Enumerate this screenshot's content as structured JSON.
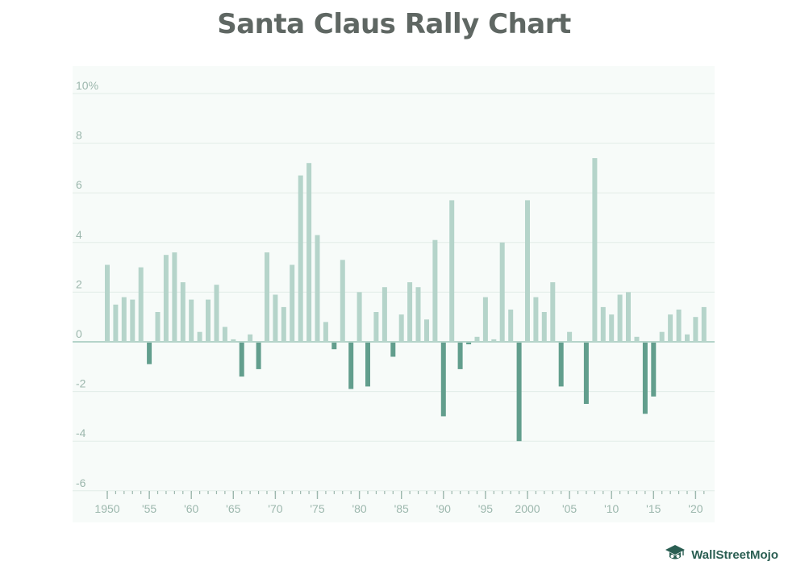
{
  "title": "Santa Claus Rally Chart",
  "brand": {
    "name": "WallStreetMojo",
    "color": "#2a5e52"
  },
  "colors": {
    "plot_background": "#f7fbf9",
    "positive": "#b5d4ca",
    "negative": "#629e8d",
    "gridline": "#e2ece8",
    "zero_line": "#b5d4ca",
    "tick_text": "#9cb7ad"
  },
  "chart_data": {
    "type": "bar",
    "title": "Santa Claus Rally Chart",
    "xlabel": "",
    "ylabel": "",
    "ylim": [
      -6,
      10
    ],
    "y_ticks": [
      -6,
      -4,
      -2,
      0,
      2,
      4,
      6,
      8,
      10
    ],
    "y_tick_labels": [
      "-6",
      "-4",
      "-2",
      "0",
      "2",
      "4",
      "6",
      "8",
      "10%"
    ],
    "x_tick_years": [
      1950,
      1955,
      1960,
      1965,
      1970,
      1975,
      1980,
      1985,
      1990,
      1995,
      2000,
      2005,
      2010,
      2015,
      2020
    ],
    "x_tick_labels": [
      "1950",
      "'55",
      "'60",
      "'65",
      "'70",
      "'75",
      "'80",
      "'85",
      "'90",
      "'95",
      "2000",
      "'05",
      "'10",
      "'15",
      "'20"
    ],
    "grid": true,
    "legend": "none",
    "years": [
      1950,
      1951,
      1952,
      1953,
      1954,
      1955,
      1956,
      1957,
      1958,
      1959,
      1960,
      1961,
      1962,
      1963,
      1964,
      1965,
      1966,
      1967,
      1968,
      1969,
      1970,
      1971,
      1972,
      1973,
      1974,
      1975,
      1976,
      1977,
      1978,
      1979,
      1980,
      1981,
      1982,
      1983,
      1984,
      1985,
      1986,
      1987,
      1988,
      1989,
      1990,
      1991,
      1992,
      1993,
      1994,
      1995,
      1996,
      1997,
      1998,
      1999,
      2000,
      2001,
      2002,
      2003,
      2004,
      2005,
      2006,
      2007,
      2008,
      2009,
      2010,
      2011,
      2012,
      2013,
      2014,
      2015,
      2016,
      2017,
      2018,
      2019,
      2020,
      2021
    ],
    "values": [
      3.1,
      1.5,
      1.8,
      1.7,
      3.0,
      -0.9,
      1.2,
      3.5,
      3.6,
      2.4,
      1.7,
      0.4,
      1.7,
      2.3,
      0.6,
      0.1,
      -1.4,
      0.3,
      -1.1,
      3.6,
      1.9,
      1.4,
      3.1,
      6.7,
      7.2,
      4.3,
      0.8,
      -0.3,
      3.3,
      -1.9,
      2.0,
      -1.8,
      1.2,
      2.2,
      -0.6,
      1.1,
      2.4,
      2.2,
      0.9,
      4.1,
      -3.0,
      5.7,
      -1.1,
      -0.1,
      0.2,
      1.8,
      0.1,
      4.0,
      1.3,
      -4.0,
      5.7,
      1.8,
      1.2,
      2.4,
      -1.8,
      0.4,
      0.0,
      -2.5,
      7.4,
      1.4,
      1.1,
      1.9,
      2.0,
      0.2,
      -2.9,
      -2.2,
      0.4,
      1.1,
      1.3,
      0.3,
      1.0,
      1.4
    ]
  }
}
